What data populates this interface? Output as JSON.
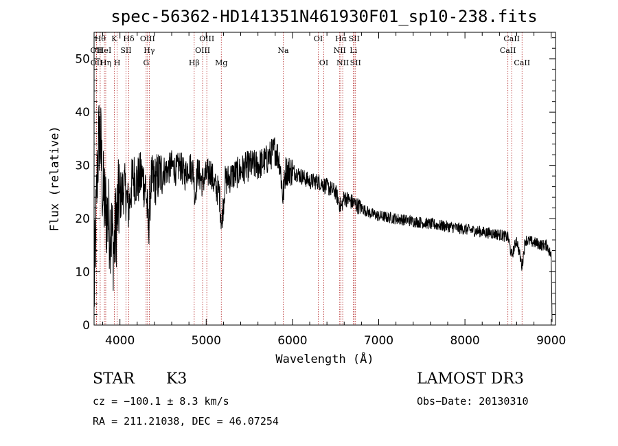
{
  "chart_data": {
    "type": "line",
    "title": "spec-56362-HD141351N461930F01_sp10-238.fits",
    "xlabel": "Wavelength (Å)",
    "ylabel": "Flux (relative)",
    "xlim": [
      3700,
      9050
    ],
    "ylim": [
      0,
      55
    ],
    "xticks": [
      4000,
      5000,
      6000,
      7000,
      8000,
      9000
    ],
    "yticks": [
      0,
      10,
      20,
      30,
      40,
      50
    ],
    "series_anchors": [
      [
        3700,
        5
      ],
      [
        3720,
        18
      ],
      [
        3740,
        30
      ],
      [
        3760,
        36
      ],
      [
        3780,
        33
      ],
      [
        3800,
        25
      ],
      [
        3830,
        22
      ],
      [
        3860,
        20
      ],
      [
        3900,
        18
      ],
      [
        3930,
        14
      ],
      [
        3960,
        20
      ],
      [
        4000,
        24
      ],
      [
        4050,
        26
      ],
      [
        4100,
        22
      ],
      [
        4150,
        28
      ],
      [
        4200,
        27
      ],
      [
        4250,
        28
      ],
      [
        4300,
        26
      ],
      [
        4330,
        18
      ],
      [
        4360,
        27
      ],
      [
        4400,
        27
      ],
      [
        4450,
        28
      ],
      [
        4500,
        29
      ],
      [
        4550,
        29
      ],
      [
        4600,
        30
      ],
      [
        4650,
        29
      ],
      [
        4700,
        30
      ],
      [
        4750,
        28
      ],
      [
        4800,
        30
      ],
      [
        4850,
        29
      ],
      [
        4870,
        24
      ],
      [
        4900,
        29
      ],
      [
        4950,
        27
      ],
      [
        5000,
        28
      ],
      [
        5050,
        29
      ],
      [
        5100,
        26
      ],
      [
        5150,
        25
      ],
      [
        5180,
        19
      ],
      [
        5220,
        27
      ],
      [
        5300,
        28
      ],
      [
        5400,
        29
      ],
      [
        5500,
        30
      ],
      [
        5600,
        30
      ],
      [
        5700,
        31
      ],
      [
        5800,
        33
      ],
      [
        5850,
        31
      ],
      [
        5890,
        24
      ],
      [
        5920,
        29
      ],
      [
        6000,
        29
      ],
      [
        6100,
        28
      ],
      [
        6200,
        27
      ],
      [
        6300,
        27
      ],
      [
        6400,
        26
      ],
      [
        6500,
        25
      ],
      [
        6563,
        22
      ],
      [
        6600,
        24
      ],
      [
        6700,
        23
      ],
      [
        6800,
        22
      ],
      [
        6900,
        21
      ],
      [
        7000,
        20.5
      ],
      [
        7200,
        20
      ],
      [
        7400,
        19.5
      ],
      [
        7600,
        19
      ],
      [
        7800,
        18.5
      ],
      [
        8000,
        18
      ],
      [
        8200,
        17.5
      ],
      [
        8400,
        17
      ],
      [
        8500,
        16.5
      ],
      [
        8542,
        13
      ],
      [
        8600,
        16
      ],
      [
        8662,
        11
      ],
      [
        8700,
        16
      ],
      [
        8800,
        15.5
      ],
      [
        8900,
        15
      ],
      [
        8950,
        15
      ],
      [
        9000,
        13
      ],
      [
        9010,
        1
      ]
    ],
    "emission_lines": [
      {
        "name": "OII",
        "wavelength": 3727,
        "row": 2
      },
      {
        "name": "OII",
        "wavelength": 3729,
        "row": 3
      },
      {
        "name": "Hθ",
        "wavelength": 3771,
        "row": 1
      },
      {
        "name": "HeI",
        "wavelength": 3820,
        "row": 2
      },
      {
        "name": "Hη",
        "wavelength": 3835,
        "row": 3
      },
      {
        "name": "K",
        "wavelength": 3934,
        "row": 1
      },
      {
        "name": "SII",
        "wavelength": 4070,
        "row": 2
      },
      {
        "name": "H",
        "wavelength": 3968,
        "row": 3
      },
      {
        "name": "Hδ",
        "wavelength": 4102,
        "row": 1
      },
      {
        "name": "OIII",
        "wavelength": 4320,
        "row": 1
      },
      {
        "name": "Hγ",
        "wavelength": 4340,
        "row": 2
      },
      {
        "name": "G",
        "wavelength": 4304,
        "row": 3
      },
      {
        "name": "OIII",
        "wavelength": 5007,
        "row": 1
      },
      {
        "name": "OIII",
        "wavelength": 4959,
        "row": 2
      },
      {
        "name": "Hβ",
        "wavelength": 4861,
        "row": 3
      },
      {
        "name": "Mg",
        "wavelength": 5175,
        "row": 3
      },
      {
        "name": "Na",
        "wavelength": 5893,
        "row": 2
      },
      {
        "name": "OI",
        "wavelength": 6300,
        "row": 1
      },
      {
        "name": "OI",
        "wavelength": 6363,
        "row": 3
      },
      {
        "name": "Hα",
        "wavelength": 6563,
        "row": 1
      },
      {
        "name": "NII",
        "wavelength": 6548,
        "row": 2
      },
      {
        "name": "NII",
        "wavelength": 6583,
        "row": 3
      },
      {
        "name": "SII",
        "wavelength": 6716,
        "row": 1
      },
      {
        "name": "Li",
        "wavelength": 6707,
        "row": 2
      },
      {
        "name": "SII",
        "wavelength": 6731,
        "row": 3
      },
      {
        "name": "CaII",
        "wavelength": 8542,
        "row": 1
      },
      {
        "name": "CaII",
        "wavelength": 8498,
        "row": 2
      },
      {
        "name": "CaII",
        "wavelength": 8662,
        "row": 3
      }
    ]
  },
  "info": {
    "object_class": "STAR",
    "subclass": "K3",
    "survey": "LAMOST DR3",
    "redshift": "cz = −100.1 ± 8.3 km/s",
    "obs_date": "Obs−Date: 20130310",
    "coords": "RA = 211.21038, DEC =  46.07254"
  },
  "colors": {
    "line_marker": "#b22222",
    "spectrum": "#000000"
  }
}
